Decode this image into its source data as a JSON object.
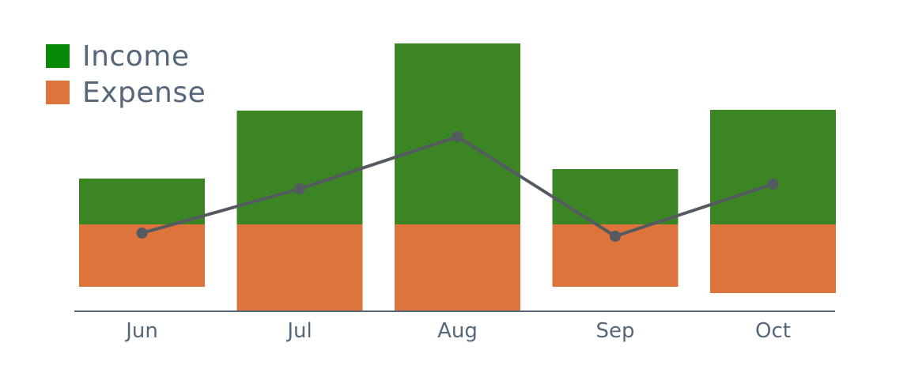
{
  "chart_data": {
    "type": "bar",
    "stacked": true,
    "categories": [
      "Jun",
      "Jul",
      "Aug",
      "Sep",
      "Oct"
    ],
    "series": [
      {
        "name": "Income",
        "kind": "bar",
        "values": [
          58,
          144,
          229,
          70,
          145
        ],
        "color": "#3c8524"
      },
      {
        "name": "Expense",
        "kind": "bar",
        "values": [
          -79,
          -111,
          -109,
          -79,
          -87
        ],
        "color": "#dd743b"
      },
      {
        "kind": "line",
        "values": [
          -11,
          45,
          111,
          -15,
          51
        ],
        "color": "#555a61"
      }
    ],
    "legend": {
      "position": "top-left",
      "swatch_colors": [
        "#088a08",
        "#dd743b"
      ]
    },
    "axis_color": "#56677a",
    "grid": false
  }
}
